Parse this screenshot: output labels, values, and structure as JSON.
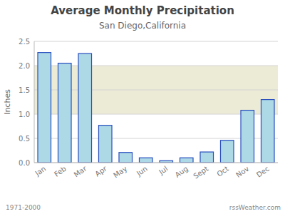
{
  "chart_data": {
    "type": "bar",
    "title": "Average Monthly Precipitation",
    "subtitle": "San Diego,California",
    "ylabel": "Inches",
    "footer_left": "1971-2000",
    "footer_right": "rssWeather.com",
    "categories": [
      "Jan",
      "Feb",
      "Mar",
      "Apr",
      "May",
      "Jun",
      "Jul",
      "Aug",
      "Sept",
      "Oct",
      "Nov",
      "Dec"
    ],
    "values": [
      2.27,
      2.05,
      2.25,
      0.77,
      0.21,
      0.1,
      0.04,
      0.1,
      0.22,
      0.46,
      1.08,
      1.3
    ],
    "color": "#add8e6",
    "shaded_band": [
      1.0,
      2.0
    ],
    "ylim": [
      0,
      2.5
    ],
    "yticks": [
      {
        "value": 0,
        "label": "0.0"
      },
      0.5,
      {
        "value": 1,
        "label": "1.0"
      },
      1.5,
      {
        "value": 2,
        "label": "2.0"
      },
      2.5
    ],
    "grid": true
  }
}
